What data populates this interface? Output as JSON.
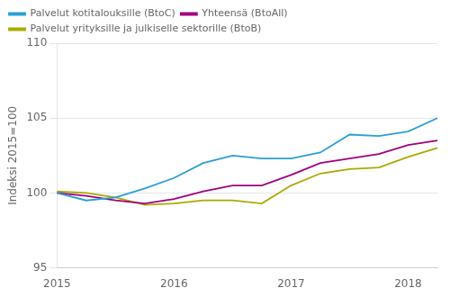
{
  "chart_data": {
    "type": "line",
    "y_label": "Indeksi 2015=100",
    "categories": [
      "2015",
      null,
      null,
      null,
      "2016",
      null,
      null,
      null,
      "2017",
      null,
      null,
      null,
      "2018",
      null
    ],
    "series": [
      {
        "name": "Palvelut kotitalouksille (BtoC)",
        "color": "#2b9fd4",
        "values": [
          100.0,
          99.5,
          99.7,
          100.3,
          101.0,
          102.0,
          102.5,
          102.3,
          102.3,
          102.7,
          103.9,
          103.8,
          104.1,
          105.0
        ]
      },
      {
        "name": "Yhteensä (BtoAll)",
        "color": "#a0007f",
        "values": [
          100.0,
          99.8,
          99.5,
          99.3,
          99.6,
          100.1,
          100.5,
          100.5,
          101.2,
          102.0,
          102.3,
          102.6,
          103.2,
          103.5
        ]
      },
      {
        "name": "Palvelut yrityksille ja julkiselle sektorille (BtoB)",
        "color": "#aaaa00",
        "values": [
          100.1,
          100.0,
          99.7,
          99.2,
          99.3,
          99.5,
          99.5,
          99.3,
          100.5,
          101.3,
          101.6,
          101.7,
          102.4,
          103.0
        ]
      }
    ],
    "ylim": [
      95,
      110
    ],
    "yticks": [
      95,
      100,
      105,
      110
    ],
    "grid": "y",
    "legend": "upper left"
  }
}
